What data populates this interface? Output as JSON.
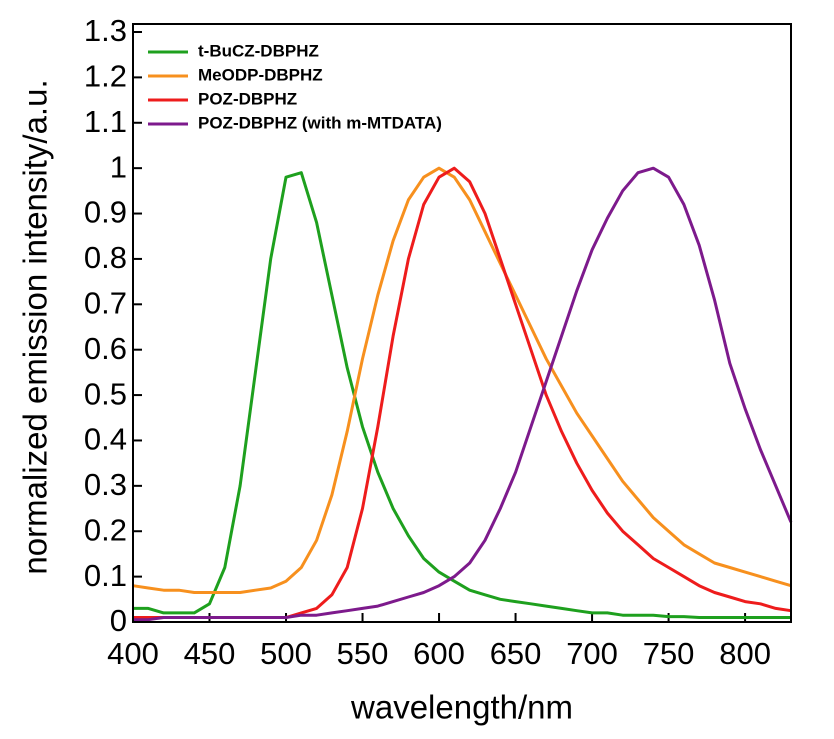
{
  "chart_data": {
    "type": "line",
    "xlabel": "wavelength/nm",
    "ylabel": "normalized emission intensity/a.u.",
    "x": [
      400,
      410,
      420,
      430,
      440,
      450,
      460,
      470,
      480,
      490,
      500,
      510,
      520,
      530,
      540,
      550,
      560,
      570,
      580,
      590,
      600,
      610,
      620,
      630,
      640,
      650,
      660,
      670,
      680,
      690,
      700,
      710,
      720,
      730,
      740,
      750,
      760,
      770,
      780,
      790,
      800,
      810,
      820,
      830
    ],
    "series": [
      {
        "name": "t-BuCZ-DBPHZ",
        "color": "#1ea01e",
        "values": [
          0.03,
          0.03,
          0.02,
          0.02,
          0.02,
          0.04,
          0.12,
          0.3,
          0.55,
          0.8,
          0.98,
          0.99,
          0.88,
          0.72,
          0.56,
          0.43,
          0.33,
          0.25,
          0.19,
          0.14,
          0.11,
          0.09,
          0.07,
          0.06,
          0.05,
          0.045,
          0.04,
          0.035,
          0.03,
          0.025,
          0.02,
          0.02,
          0.015,
          0.015,
          0.015,
          0.012,
          0.012,
          0.01,
          0.01,
          0.01,
          0.01,
          0.01,
          0.01,
          0.01
        ]
      },
      {
        "name": "MeODP-DBPHZ",
        "color": "#f7901e",
        "values": [
          0.08,
          0.075,
          0.07,
          0.07,
          0.065,
          0.065,
          0.065,
          0.065,
          0.07,
          0.075,
          0.09,
          0.12,
          0.18,
          0.28,
          0.42,
          0.58,
          0.72,
          0.84,
          0.93,
          0.98,
          1.0,
          0.98,
          0.93,
          0.86,
          0.79,
          0.72,
          0.65,
          0.58,
          0.52,
          0.46,
          0.41,
          0.36,
          0.31,
          0.27,
          0.23,
          0.2,
          0.17,
          0.15,
          0.13,
          0.12,
          0.11,
          0.1,
          0.09,
          0.08
        ]
      },
      {
        "name": "POZ-DBPHZ",
        "color": "#ee1c1c",
        "values": [
          0.01,
          0.01,
          0.01,
          0.01,
          0.01,
          0.01,
          0.01,
          0.01,
          0.01,
          0.01,
          0.01,
          0.02,
          0.03,
          0.06,
          0.12,
          0.25,
          0.43,
          0.63,
          0.8,
          0.92,
          0.98,
          1.0,
          0.97,
          0.9,
          0.8,
          0.7,
          0.6,
          0.5,
          0.42,
          0.35,
          0.29,
          0.24,
          0.2,
          0.17,
          0.14,
          0.12,
          0.1,
          0.08,
          0.065,
          0.055,
          0.045,
          0.04,
          0.03,
          0.025
        ]
      },
      {
        "name": "POZ-DBPHZ (with m-MTDATA)",
        "color": "#7d1a8c",
        "values": [
          0.005,
          0.005,
          0.01,
          0.01,
          0.01,
          0.01,
          0.01,
          0.01,
          0.01,
          0.01,
          0.01,
          0.015,
          0.015,
          0.02,
          0.025,
          0.03,
          0.035,
          0.045,
          0.055,
          0.065,
          0.08,
          0.1,
          0.13,
          0.18,
          0.25,
          0.33,
          0.43,
          0.53,
          0.63,
          0.73,
          0.82,
          0.89,
          0.95,
          0.99,
          1.0,
          0.98,
          0.92,
          0.83,
          0.71,
          0.57,
          0.47,
          0.38,
          0.3,
          0.22
        ]
      }
    ],
    "xlim": [
      400,
      830
    ],
    "ylim": [
      0,
      1.3
    ],
    "xticks": [
      400,
      450,
      500,
      550,
      600,
      650,
      700,
      750,
      800
    ],
    "yticks": [
      0,
      0.1,
      0.2,
      0.3,
      0.4,
      0.5,
      0.6,
      0.7,
      0.8,
      0.9,
      1,
      1.1,
      1.2,
      1.3
    ],
    "legend": "upper-left"
  }
}
